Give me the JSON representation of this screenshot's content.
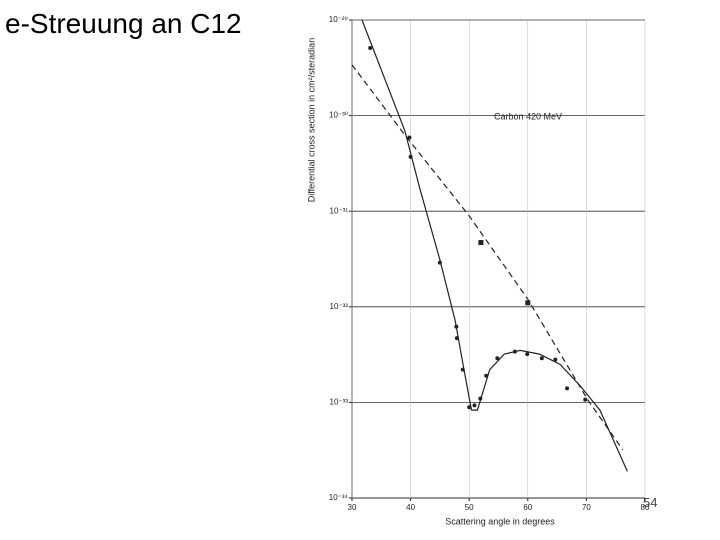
{
  "slide_title": "e-Streuung an C12",
  "page_number": "54",
  "chart_data": {
    "type": "line",
    "annotation": "Carbon 420 MeV",
    "x_label": "Scattering angle in degrees",
    "y_label": "Differential cross section in cm²/steradian",
    "log_y": true,
    "grid": true,
    "xlim": [
      30,
      80
    ],
    "xticks": [
      30,
      40,
      50,
      60,
      70,
      80
    ],
    "ylim": [
      1e-34,
      1e-29
    ],
    "yticks": [
      {
        "value": 1e-29,
        "label": "10⁻²⁹"
      },
      {
        "value": 1e-30,
        "label": "10⁻³⁰"
      },
      {
        "value": 1e-31,
        "label": "10⁻³¹"
      },
      {
        "value": 1e-32,
        "label": "10⁻³²"
      },
      {
        "value": 1e-33,
        "label": "10⁻³³"
      },
      {
        "value": 1e-34,
        "label": "10⁻³⁴"
      }
    ],
    "series": [
      {
        "style": "markers",
        "color": "#222222",
        "x": [
          33.1,
          39.8,
          40,
          45,
          47.8,
          47.9,
          48.9,
          50,
          50.9,
          51.9,
          52.9,
          54.8,
          57.8,
          59.9,
          62.4,
          64.7,
          66.7,
          69.8
        ],
        "values": [
          5.1e-30,
          5.9e-31,
          3.7e-31,
          2.9e-32,
          6.2e-33,
          4.7e-33,
          2.2e-33,
          8.9e-34,
          9.3e-34,
          1.1e-33,
          1.9e-33,
          2.9e-33,
          3.4e-33,
          3.2e-33,
          2.9e-33,
          2.8e-33,
          1.4e-33,
          1.07e-33
        ]
      },
      {
        "style": "squares",
        "color": "#222222",
        "x": [
          52,
          60
        ],
        "values": [
          4.7e-32,
          1.1e-32
        ]
      },
      {
        "style": "solid",
        "color": "#222222",
        "x": [
          31.7,
          39,
          41.6,
          45,
          47.6,
          49.3,
          50.4,
          51.4,
          53.5,
          56,
          58.7,
          62,
          65.5,
          68.9,
          72.3,
          77
        ],
        "values": [
          1e-29,
          7e-31,
          1.7e-31,
          3.1e-32,
          7.2e-33,
          1.9e-33,
          8.3e-34,
          8.3e-34,
          2.2e-33,
          3.2e-33,
          3.5e-33,
          3.2e-33,
          2.5e-33,
          1.5e-33,
          8.3e-34,
          1.9e-34
        ]
      },
      {
        "style": "dashed",
        "color": "#222222",
        "x": [
          30,
          39,
          49.9,
          60,
          70.2,
          76.2
        ],
        "values": [
          3.4e-30,
          6.3e-31,
          9.1e-32,
          1.2e-32,
          1.07e-33,
          3.2e-34
        ]
      }
    ]
  }
}
